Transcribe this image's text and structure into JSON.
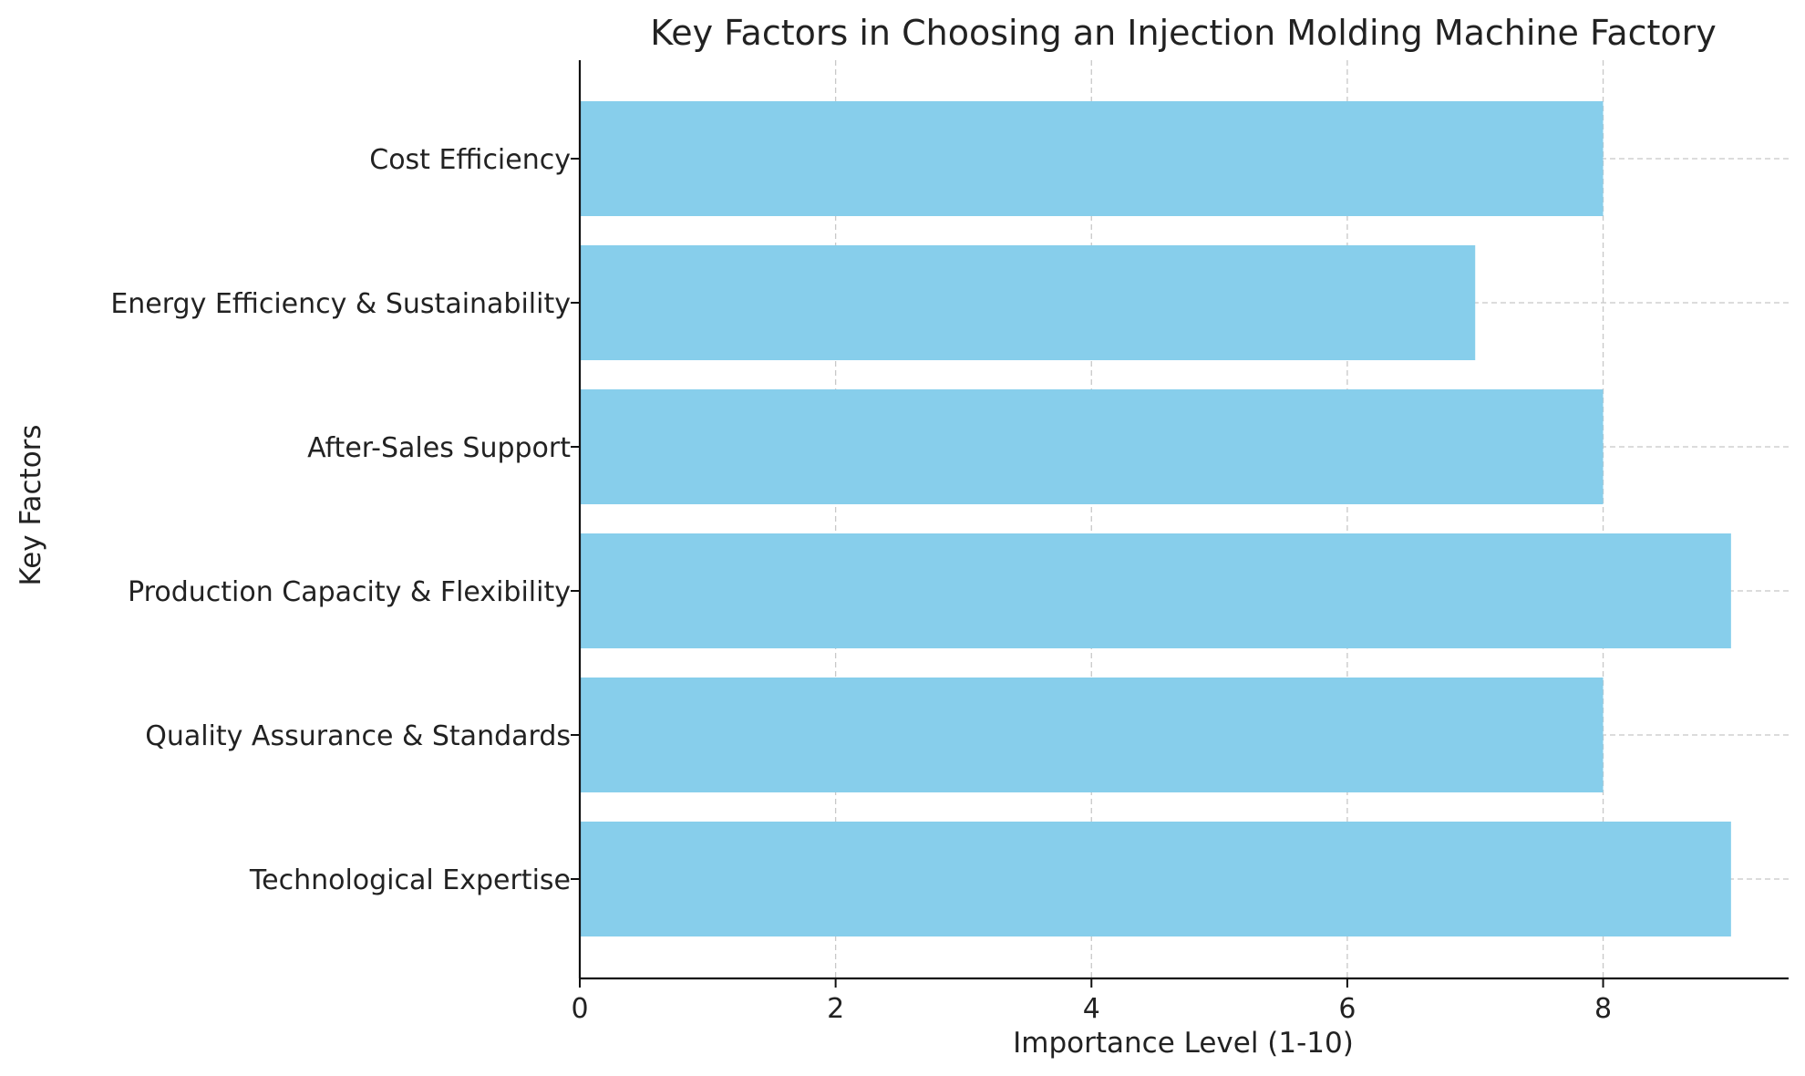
{
  "chart_data": {
    "type": "bar",
    "orientation": "horizontal",
    "title": "Key Factors in Choosing an Injection Molding Machine Factory",
    "xlabel": "Importance Level (1-10)",
    "ylabel": "Key Factors",
    "categories": [
      "Technological Expertise",
      "Quality Assurance & Standards",
      "Production Capacity & Flexibility",
      "After-Sales Support",
      "Energy Efficiency & Sustainability",
      "Cost Efficiency"
    ],
    "values": [
      9,
      8,
      9,
      8,
      7,
      8
    ],
    "xlim": [
      0,
      9.45
    ],
    "xticks": [
      0,
      2,
      4,
      6,
      8
    ],
    "grid": true,
    "bar_color": "#87ceeb"
  }
}
